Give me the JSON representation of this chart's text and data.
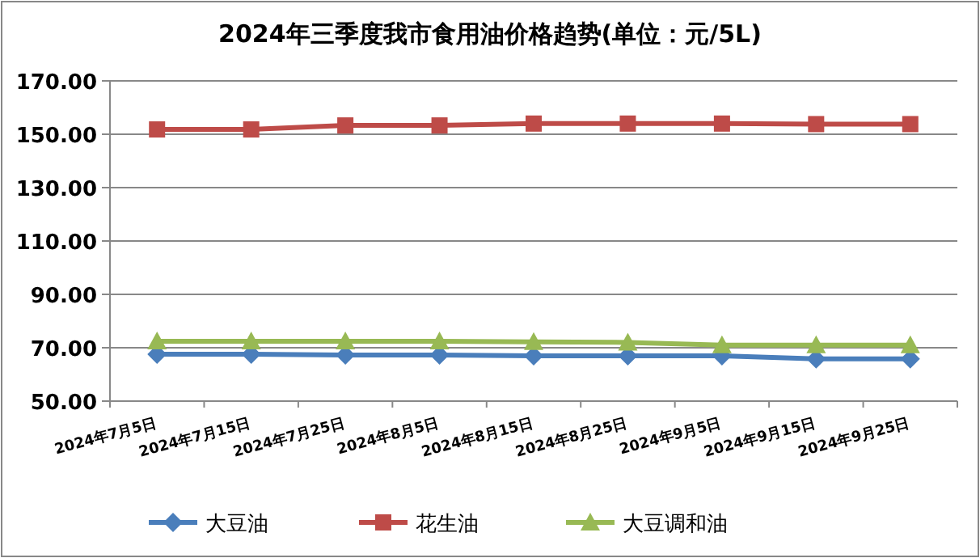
{
  "chart_data": {
    "type": "line",
    "title": "2024年三季度我市食用油价格趋势(单位：元/5L)",
    "categories": [
      "2024年7月5日",
      "2024年7月15日",
      "2024年7月25日",
      "2024年8月5日",
      "2024年8月15日",
      "2024年8月25日",
      "2024年9月5日",
      "2024年9月15日",
      "2024年9月25日"
    ],
    "series": [
      {
        "name": "大豆油",
        "color": "#4a7ebb",
        "marker": "diamond",
        "values": [
          67.6,
          67.6,
          67.3,
          67.3,
          67.0,
          67.0,
          67.0,
          65.8,
          65.8
        ]
      },
      {
        "name": "花生油",
        "color": "#be4b48",
        "marker": "square",
        "values": [
          151.8,
          151.8,
          153.3,
          153.3,
          154.0,
          154.0,
          154.0,
          153.8,
          153.8
        ]
      },
      {
        "name": "大豆调和油",
        "color": "#98b954",
        "marker": "triangle",
        "values": [
          72.4,
          72.4,
          72.4,
          72.4,
          72.2,
          72.0,
          71.0,
          71.0,
          71.0
        ]
      }
    ],
    "ylim": [
      50,
      170
    ],
    "yticks": [
      {
        "value": 50,
        "label": "50.00"
      },
      {
        "value": 70,
        "label": "70.00"
      },
      {
        "value": 90,
        "label": "90.00"
      },
      {
        "value": 110,
        "label": "110.00"
      },
      {
        "value": 130,
        "label": "130.00"
      },
      {
        "value": 150,
        "label": "150.00"
      },
      {
        "value": 170,
        "label": "170.00"
      }
    ],
    "grid": "y",
    "legend": "bottom"
  }
}
